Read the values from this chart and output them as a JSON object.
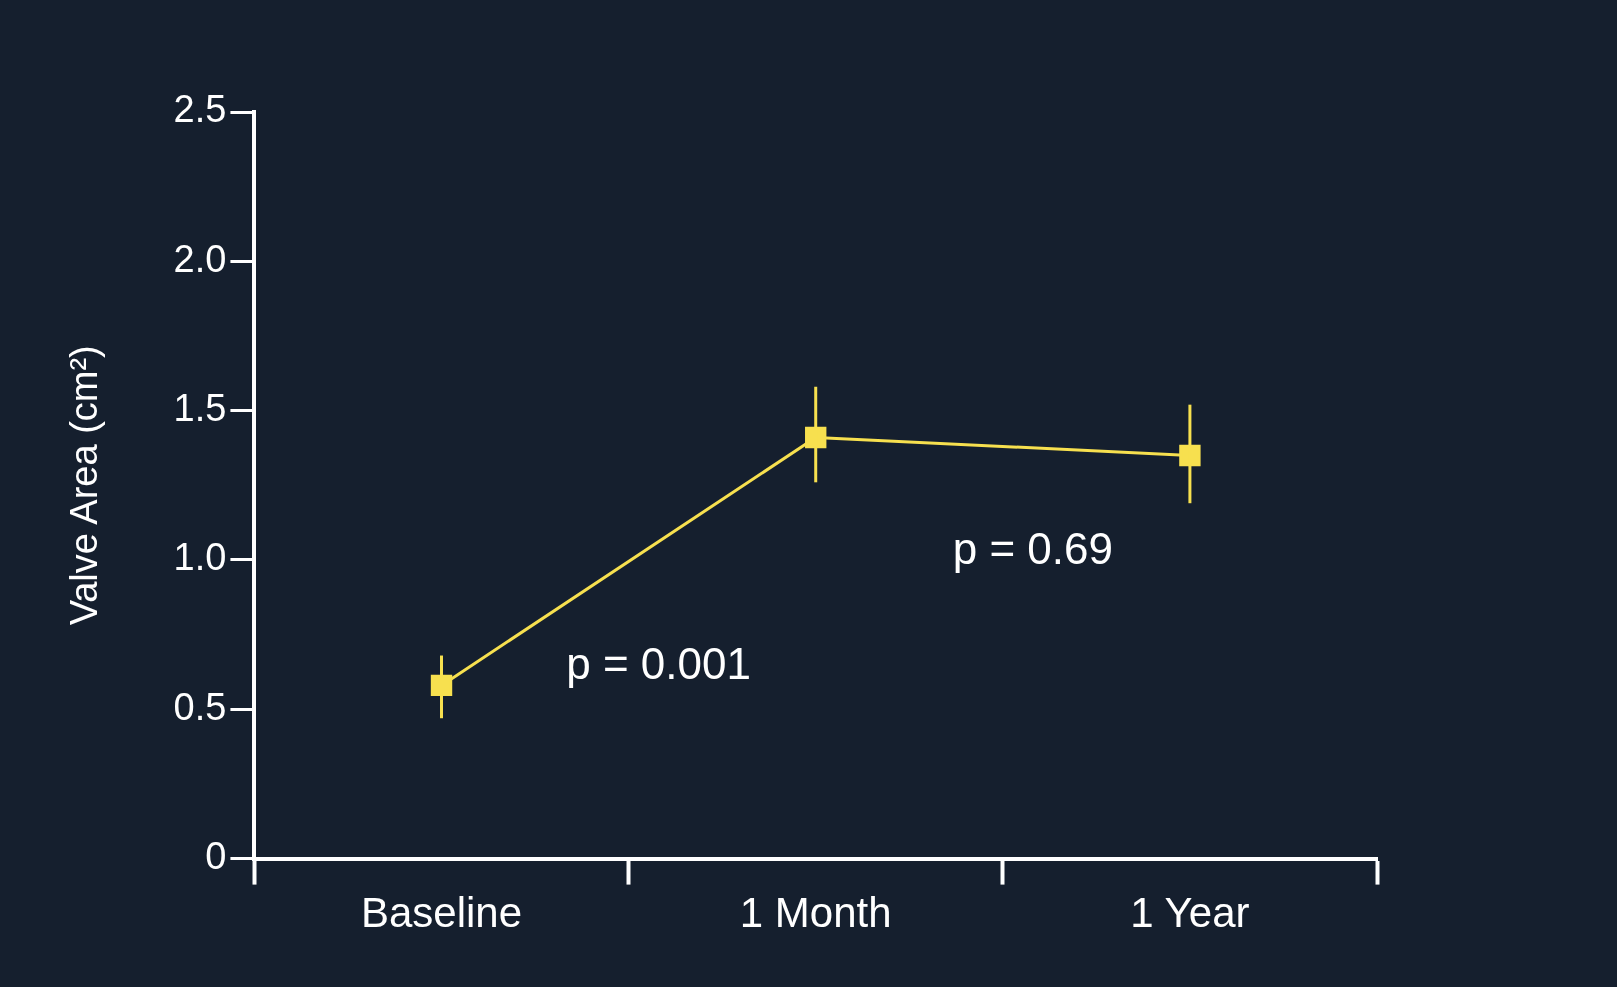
{
  "chart_data": {
    "type": "line",
    "ylabel": "Valve Area (cm²)",
    "categories": [
      "Baseline",
      "1 Month",
      "1 Year"
    ],
    "series": [
      {
        "color": "#f7e04f",
        "values": [
          0.58,
          1.41,
          1.35
        ],
        "errors": [
          [
            0.47,
            0.68
          ],
          [
            1.26,
            1.58
          ],
          [
            1.19,
            1.52
          ]
        ]
      }
    ],
    "ylim": [
      0,
      2.5
    ],
    "yticks": [
      0,
      0.5,
      {
        "value": 1,
        "label": "1.0"
      },
      1.5,
      {
        "value": 2,
        "label": "2.0"
      },
      2.5
    ],
    "annotations": [
      "p = 0.001",
      "p = 0.69"
    ],
    "marker": "square",
    "line_style": "solid",
    "grid": false,
    "legend": false
  }
}
